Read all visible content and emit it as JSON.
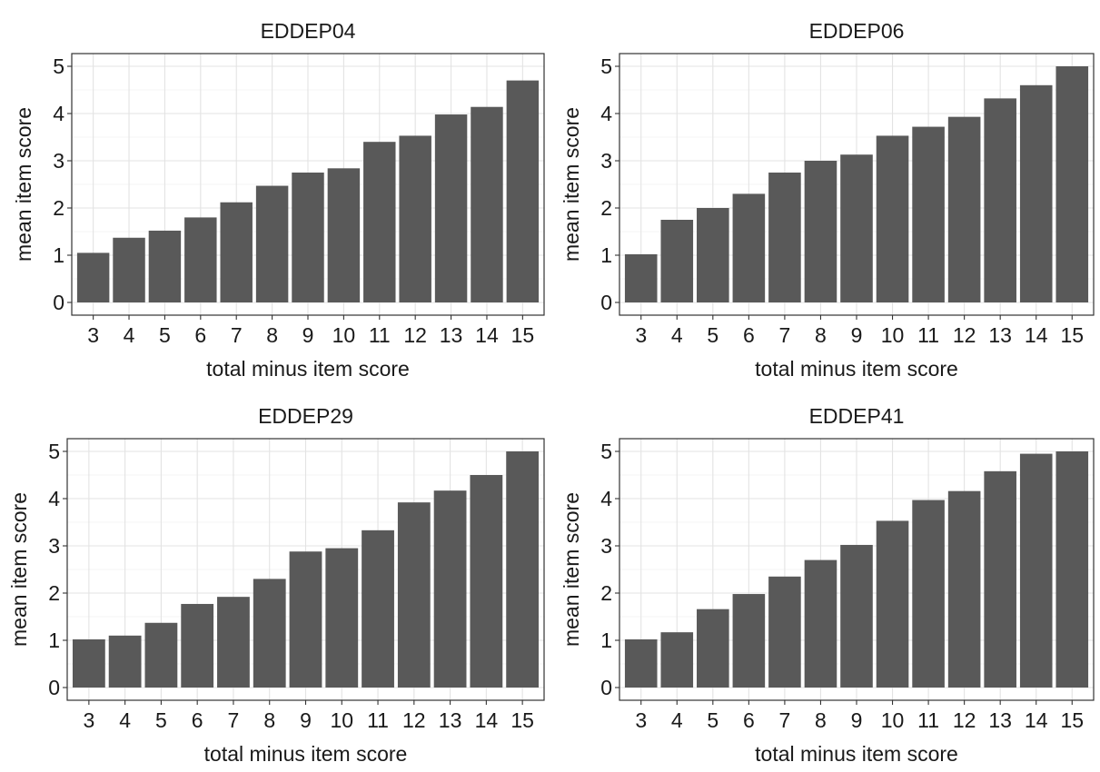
{
  "chart_data": [
    {
      "type": "bar",
      "title": "EDDEP04",
      "xlabel": "total minus item score",
      "ylabel": "mean item score",
      "categories": [
        "3",
        "4",
        "5",
        "6",
        "7",
        "8",
        "9",
        "10",
        "11",
        "12",
        "13",
        "14",
        "15"
      ],
      "values": [
        1.05,
        1.37,
        1.52,
        1.8,
        2.12,
        2.47,
        2.75,
        2.84,
        3.4,
        3.53,
        3.98,
        4.14,
        4.7
      ],
      "yticks": [
        "0",
        "1",
        "2",
        "3",
        "4",
        "5"
      ],
      "ylim": [
        0,
        5
      ],
      "grid": true,
      "bar_color": "#595959"
    },
    {
      "type": "bar",
      "title": "EDDEP06",
      "xlabel": "total minus item score",
      "ylabel": "mean item score",
      "categories": [
        "3",
        "4",
        "5",
        "6",
        "7",
        "8",
        "9",
        "10",
        "11",
        "12",
        "13",
        "14",
        "15"
      ],
      "values": [
        1.02,
        1.75,
        2.0,
        2.3,
        2.75,
        3.0,
        3.13,
        3.53,
        3.72,
        3.93,
        4.32,
        4.6,
        5.0
      ],
      "yticks": [
        "0",
        "1",
        "2",
        "3",
        "4",
        "5"
      ],
      "ylim": [
        0,
        5
      ],
      "grid": true,
      "bar_color": "#595959"
    },
    {
      "type": "bar",
      "title": "EDDEP29",
      "xlabel": "total minus item score",
      "ylabel": "mean item score",
      "categories": [
        "3",
        "4",
        "5",
        "6",
        "7",
        "8",
        "9",
        "10",
        "11",
        "12",
        "13",
        "14",
        "15"
      ],
      "values": [
        1.02,
        1.1,
        1.37,
        1.77,
        1.92,
        2.3,
        2.88,
        2.95,
        3.33,
        3.92,
        4.17,
        4.5,
        5.0
      ],
      "yticks": [
        "0",
        "1",
        "2",
        "3",
        "4",
        "5"
      ],
      "ylim": [
        0,
        5
      ],
      "grid": true,
      "bar_color": "#595959"
    },
    {
      "type": "bar",
      "title": "EDDEP41",
      "xlabel": "total minus item score",
      "ylabel": "mean item score",
      "categories": [
        "3",
        "4",
        "5",
        "6",
        "7",
        "8",
        "9",
        "10",
        "11",
        "12",
        "13",
        "14",
        "15"
      ],
      "values": [
        1.02,
        1.17,
        1.66,
        1.98,
        2.35,
        2.7,
        3.02,
        3.53,
        3.97,
        4.16,
        4.58,
        4.95,
        5.0
      ],
      "yticks": [
        "0",
        "1",
        "2",
        "3",
        "4",
        "5"
      ],
      "ylim": [
        0,
        5
      ],
      "grid": true,
      "bar_color": "#595959"
    }
  ]
}
